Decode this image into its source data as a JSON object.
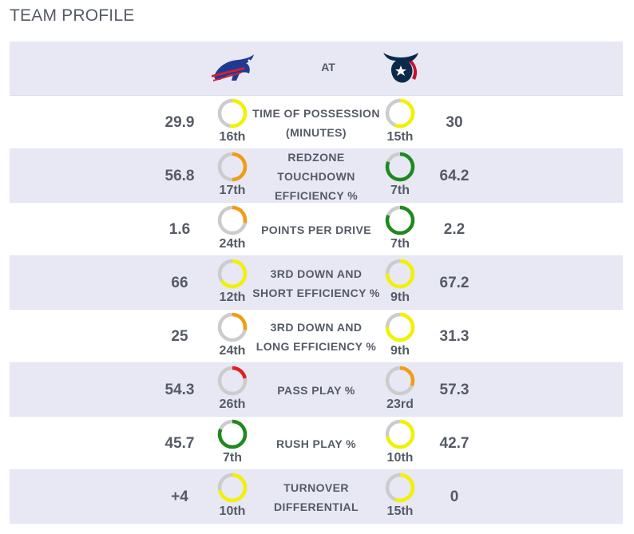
{
  "title": "TEAM PROFILE",
  "header": {
    "away_team_logo": "bills-logo",
    "at_label": "AT",
    "home_team_logo": "texans-logo"
  },
  "colors": {
    "good": "#1e8a1e",
    "above_avg": "#f2f200",
    "below_avg": "#f39c12",
    "poor": "#e02020",
    "track": "#cccccc"
  },
  "rows": [
    {
      "stat": "TIME OF POSSESSION (MINUTES)",
      "away_value": "29.9",
      "away_rank": "16th",
      "away_rank_num": 16,
      "away_color": "#f2f200",
      "home_value": "30",
      "home_rank": "15th",
      "home_rank_num": 15,
      "home_color": "#f2f200"
    },
    {
      "stat": "REDZONE TOUCHDOWN EFFICIENCY %",
      "away_value": "56.8",
      "away_rank": "17th",
      "away_rank_num": 17,
      "away_color": "#f39c12",
      "home_value": "64.2",
      "home_rank": "7th",
      "home_rank_num": 7,
      "home_color": "#1e8a1e"
    },
    {
      "stat": "POINTS PER DRIVE",
      "away_value": "1.6",
      "away_rank": "24th",
      "away_rank_num": 24,
      "away_color": "#f39c12",
      "home_value": "2.2",
      "home_rank": "7th",
      "home_rank_num": 7,
      "home_color": "#1e8a1e"
    },
    {
      "stat": "3RD DOWN AND SHORT EFFICIENCY %",
      "away_value": "66",
      "away_rank": "12th",
      "away_rank_num": 12,
      "away_color": "#f2f200",
      "home_value": "67.2",
      "home_rank": "9th",
      "home_rank_num": 9,
      "home_color": "#f2f200"
    },
    {
      "stat": "3RD DOWN AND LONG EFFICIENCY %",
      "away_value": "25",
      "away_rank": "24th",
      "away_rank_num": 24,
      "away_color": "#f39c12",
      "home_value": "31.3",
      "home_rank": "9th",
      "home_rank_num": 9,
      "home_color": "#f2f200"
    },
    {
      "stat": "PASS PLAY %",
      "away_value": "54.3",
      "away_rank": "26th",
      "away_rank_num": 26,
      "away_color": "#e02020",
      "home_value": "57.3",
      "home_rank": "23rd",
      "home_rank_num": 23,
      "home_color": "#f39c12"
    },
    {
      "stat": "RUSH PLAY %",
      "away_value": "45.7",
      "away_rank": "7th",
      "away_rank_num": 7,
      "away_color": "#1e8a1e",
      "home_value": "42.7",
      "home_rank": "10th",
      "home_rank_num": 10,
      "home_color": "#f2f200"
    },
    {
      "stat": "TURNOVER DIFFERENTIAL",
      "away_value": "+4",
      "away_rank": "10th",
      "away_rank_num": 10,
      "away_color": "#f2f200",
      "home_value": "0",
      "home_rank": "15th",
      "home_rank_num": 15,
      "home_color": "#f2f200"
    }
  ]
}
